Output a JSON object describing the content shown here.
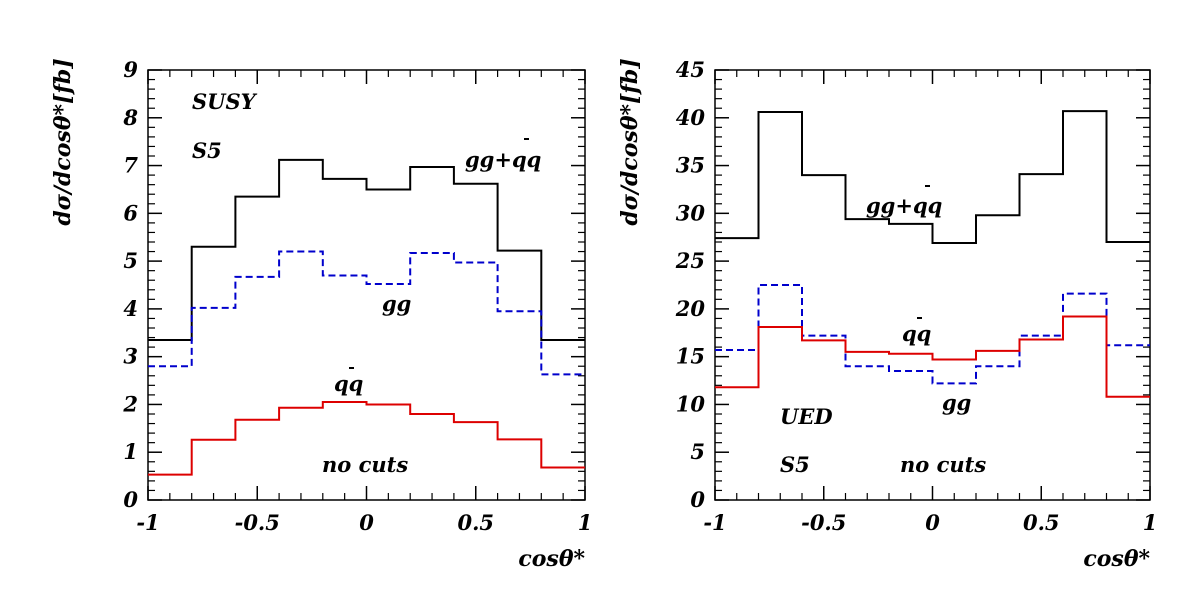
{
  "chart_data": [
    {
      "type": "line",
      "step": true,
      "xlabel": "cosθ*",
      "ylabel": "dσ/dcosθ*[fb]",
      "xlim": [
        -1,
        1
      ],
      "ylim": [
        0,
        9
      ],
      "xticks": [
        -1,
        -0.5,
        0,
        0.5,
        1
      ],
      "xtick_labels": [
        "-1",
        "-0.5",
        "0",
        "0.5",
        "1"
      ],
      "yticks": [
        0,
        1,
        2,
        3,
        4,
        5,
        6,
        7,
        8,
        9
      ],
      "ytick_labels": [
        "0",
        "1",
        "2",
        "3",
        "4",
        "5",
        "6",
        "7",
        "8",
        "9"
      ],
      "bin_edges": [
        -1,
        -0.8,
        -0.6,
        -0.4,
        -0.2,
        0,
        0.2,
        0.4,
        0.6,
        0.8,
        1
      ],
      "series": [
        {
          "name": "gg+qq̄",
          "color": "#000000",
          "style": "solid",
          "values": [
            3.35,
            5.3,
            6.35,
            7.12,
            6.72,
            6.5,
            6.97,
            6.62,
            5.22,
            3.35
          ]
        },
        {
          "name": "gg",
          "color": "#0000cc",
          "style": "dashed",
          "values": [
            2.8,
            4.02,
            4.67,
            5.2,
            4.7,
            4.52,
            5.17,
            4.97,
            3.95,
            2.63
          ]
        },
        {
          "name": "qq̄",
          "color": "#dd0000",
          "style": "solid",
          "values": [
            0.53,
            1.26,
            1.68,
            1.93,
            2.05,
            2.0,
            1.8,
            1.63,
            1.27,
            0.68
          ]
        }
      ],
      "annotations": {
        "model": "SUSY",
        "point": "S5",
        "cuts": "no cuts",
        "label_total": "gg+qq",
        "label_gg": "gg",
        "label_qq": "qq"
      }
    },
    {
      "type": "line",
      "step": true,
      "xlabel": "cosθ*",
      "ylabel": "dσ/dcosθ*[fb]",
      "xlim": [
        -1,
        1
      ],
      "ylim": [
        0,
        45
      ],
      "xticks": [
        -1,
        -0.5,
        0,
        0.5,
        1
      ],
      "xtick_labels": [
        "-1",
        "-0.5",
        "0",
        "0.5",
        "1"
      ],
      "yticks": [
        0,
        5,
        10,
        15,
        20,
        25,
        30,
        35,
        40,
        45
      ],
      "ytick_labels": [
        "0",
        "5",
        "10",
        "15",
        "20",
        "25",
        "30",
        "35",
        "40",
        "45"
      ],
      "bin_edges": [
        -1,
        -0.8,
        -0.6,
        -0.4,
        -0.2,
        0,
        0.2,
        0.4,
        0.6,
        0.8,
        1
      ],
      "series": [
        {
          "name": "gg+qq̄",
          "color": "#000000",
          "style": "solid",
          "values": [
            27.4,
            40.6,
            34.0,
            29.4,
            28.9,
            26.9,
            29.8,
            34.1,
            40.7,
            27.0
          ]
        },
        {
          "name": "gg",
          "color": "#0000cc",
          "style": "dashed",
          "values": [
            15.7,
            22.5,
            17.2,
            14.0,
            13.5,
            12.2,
            14.0,
            17.2,
            21.6,
            16.2
          ]
        },
        {
          "name": "qq̄",
          "color": "#dd0000",
          "style": "solid",
          "values": [
            11.8,
            18.1,
            16.7,
            15.5,
            15.3,
            14.7,
            15.6,
            16.8,
            19.2,
            10.8
          ]
        }
      ],
      "annotations": {
        "model": "UED",
        "point": "S5",
        "cuts": "no cuts",
        "label_total": "gg+qq",
        "label_gg": "gg",
        "label_qq": "qq"
      }
    }
  ]
}
